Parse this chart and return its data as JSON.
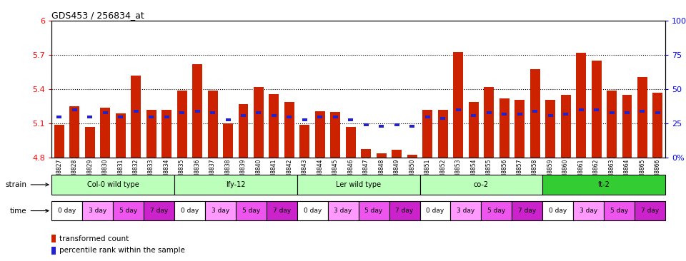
{
  "title": "GDS453 / 256834_at",
  "samples": [
    "GSM8827",
    "GSM8828",
    "GSM8829",
    "GSM8830",
    "GSM8831",
    "GSM8832",
    "GSM8833",
    "GSM8834",
    "GSM8835",
    "GSM8836",
    "GSM8837",
    "GSM8838",
    "GSM8839",
    "GSM8840",
    "GSM8841",
    "GSM8842",
    "GSM8843",
    "GSM8844",
    "GSM8845",
    "GSM8846",
    "GSM8847",
    "GSM8848",
    "GSM8849",
    "GSM8850",
    "GSM8851",
    "GSM8852",
    "GSM8853",
    "GSM8854",
    "GSM8855",
    "GSM8856",
    "GSM8857",
    "GSM8858",
    "GSM8859",
    "GSM8860",
    "GSM8861",
    "GSM8862",
    "GSM8863",
    "GSM8864",
    "GSM8865",
    "GSM8866"
  ],
  "red_values": [
    5.09,
    5.25,
    5.07,
    5.24,
    5.19,
    5.52,
    5.22,
    5.22,
    5.39,
    5.62,
    5.39,
    5.1,
    5.27,
    5.42,
    5.36,
    5.29,
    5.09,
    5.21,
    5.2,
    5.07,
    4.88,
    4.84,
    4.87,
    4.83,
    5.22,
    5.22,
    5.73,
    5.29,
    5.42,
    5.32,
    5.31,
    5.58,
    5.31,
    5.35,
    5.72,
    5.65,
    5.39,
    5.35,
    5.51,
    5.37
  ],
  "blue_values": [
    30,
    35,
    30,
    33,
    30,
    34,
    30,
    30,
    33,
    34,
    33,
    28,
    31,
    33,
    31,
    30,
    28,
    30,
    30,
    28,
    24,
    23,
    24,
    23,
    30,
    29,
    35,
    31,
    33,
    32,
    32,
    34,
    31,
    32,
    35,
    35,
    33,
    33,
    34,
    33
  ],
  "ymin": 4.8,
  "ymax": 6.0,
  "yticks": [
    4.8,
    5.1,
    5.4,
    5.7,
    6.0
  ],
  "ytick_labels": [
    "4.8",
    "5.1",
    "5.4",
    "5.7",
    "6"
  ],
  "right_yticks": [
    0,
    25,
    50,
    75,
    100
  ],
  "right_ytick_labels": [
    "0",
    "25",
    "50",
    "75",
    "100%"
  ],
  "right_ytick_labels_special": {
    "0": "0",
    "100": "100%"
  },
  "hlines": [
    5.1,
    5.4,
    5.7
  ],
  "strains": [
    {
      "label": "Col-0 wild type",
      "start": 0,
      "end": 8,
      "color": "#bbffbb"
    },
    {
      "label": "lfy-12",
      "start": 8,
      "end": 16,
      "color": "#bbffbb"
    },
    {
      "label": "Ler wild type",
      "start": 16,
      "end": 24,
      "color": "#bbffbb"
    },
    {
      "label": "co-2",
      "start": 24,
      "end": 32,
      "color": "#bbffbb"
    },
    {
      "label": "ft-2",
      "start": 32,
      "end": 40,
      "color": "#33cc33"
    }
  ],
  "time_colors": [
    "#ffffff",
    "#ff99ff",
    "#ee55ee",
    "#cc22cc"
  ],
  "time_labels": [
    "0 day",
    "3 day",
    "5 day",
    "7 day"
  ],
  "bar_color": "#cc2200",
  "blue_color": "#2222cc",
  "bar_width": 0.65,
  "legend_items": [
    {
      "label": "transformed count",
      "color": "#cc2200"
    },
    {
      "label": "percentile rank within the sample",
      "color": "#2222cc"
    }
  ]
}
